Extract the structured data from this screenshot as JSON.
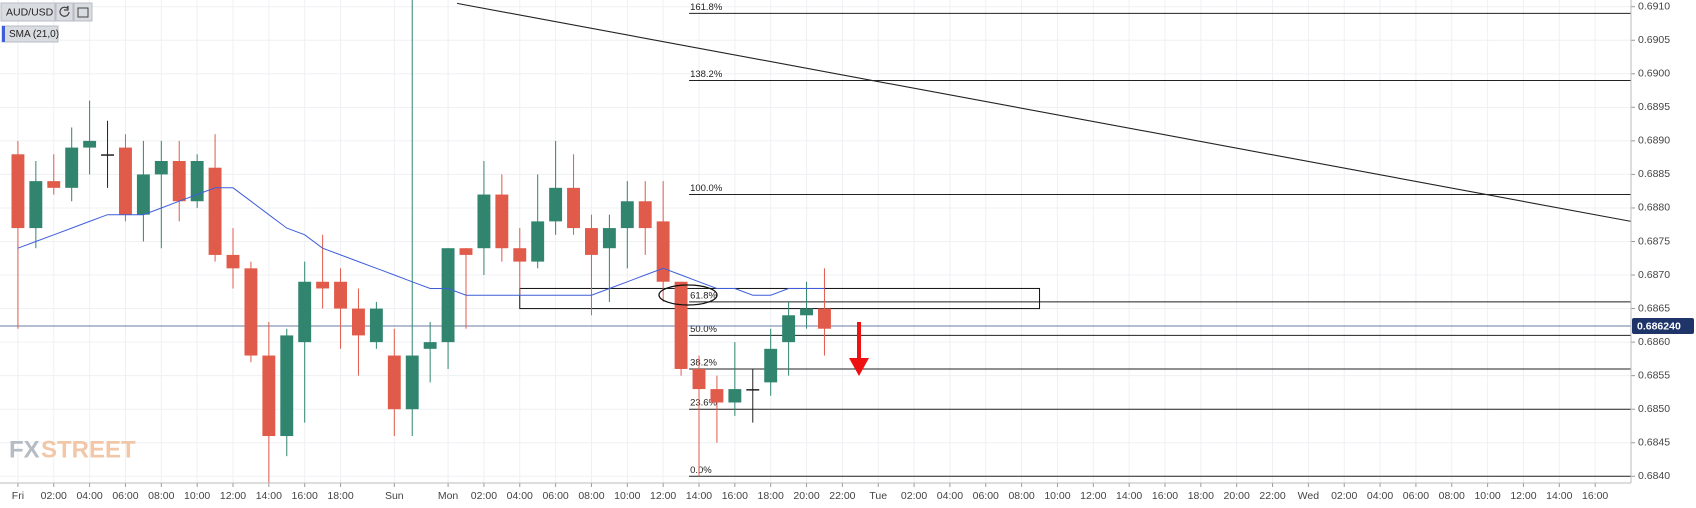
{
  "chart_data": {
    "type": "candlestick",
    "symbol": "AUD/USD",
    "watermark": {
      "first": "FX",
      "second": "STREET"
    },
    "colors": {
      "up": "#31856f",
      "down": "#e15b4b",
      "flat": "#222222"
    },
    "xlim": [
      -1,
      90
    ],
    "ylim": [
      0.6839,
      0.6911
    ],
    "grid": true,
    "xticks": [
      {
        "value": 0,
        "label": "Fri"
      },
      {
        "value": 2,
        "label": "02:00"
      },
      {
        "value": 4,
        "label": "04:00"
      },
      {
        "value": 6,
        "label": "06:00"
      },
      {
        "value": 8,
        "label": "08:00"
      },
      {
        "value": 10,
        "label": "10:00"
      },
      {
        "value": 12,
        "label": "12:00"
      },
      {
        "value": 14,
        "label": "14:00"
      },
      {
        "value": 16,
        "label": "16:00"
      },
      {
        "value": 18,
        "label": "18:00"
      },
      {
        "value": 21,
        "label": "Sun"
      },
      {
        "value": 24,
        "label": "Mon"
      },
      {
        "value": 26,
        "label": "02:00"
      },
      {
        "value": 28,
        "label": "04:00"
      },
      {
        "value": 30,
        "label": "06:00"
      },
      {
        "value": 32,
        "label": "08:00"
      },
      {
        "value": 34,
        "label": "10:00"
      },
      {
        "value": 36,
        "label": "12:00"
      },
      {
        "value": 38,
        "label": "14:00"
      },
      {
        "value": 40,
        "label": "16:00"
      },
      {
        "value": 42,
        "label": "18:00"
      },
      {
        "value": 44,
        "label": "20:00"
      },
      {
        "value": 46,
        "label": "22:00"
      },
      {
        "value": 48,
        "label": "Tue"
      },
      {
        "value": 50,
        "label": "02:00"
      },
      {
        "value": 52,
        "label": "04:00"
      },
      {
        "value": 54,
        "label": "06:00"
      },
      {
        "value": 56,
        "label": "08:00"
      },
      {
        "value": 58,
        "label": "10:00"
      },
      {
        "value": 60,
        "label": "12:00"
      },
      {
        "value": 62,
        "label": "14:00"
      },
      {
        "value": 64,
        "label": "16:00"
      },
      {
        "value": 66,
        "label": "18:00"
      },
      {
        "value": 68,
        "label": "20:00"
      },
      {
        "value": 70,
        "label": "22:00"
      },
      {
        "value": 72,
        "label": "Wed"
      },
      {
        "value": 74,
        "label": "02:00"
      },
      {
        "value": 76,
        "label": "04:00"
      },
      {
        "value": 78,
        "label": "06:00"
      },
      {
        "value": 80,
        "label": "08:00"
      },
      {
        "value": 82,
        "label": "10:00"
      },
      {
        "value": 84,
        "label": "12:00"
      },
      {
        "value": 86,
        "label": "14:00"
      },
      {
        "value": 88,
        "label": "16:00"
      }
    ],
    "yticks": [
      {
        "value": 0.684,
        "label": "0.6840"
      },
      {
        "value": 0.6845,
        "label": "0.6845"
      },
      {
        "value": 0.685,
        "label": "0.6850"
      },
      {
        "value": 0.6855,
        "label": "0.6855"
      },
      {
        "value": 0.686,
        "label": "0.6860"
      },
      {
        "value": 0.6865,
        "label": "0.6865"
      },
      {
        "value": 0.687,
        "label": "0.6870"
      },
      {
        "value": 0.6875,
        "label": "0.6875"
      },
      {
        "value": 0.688,
        "label": "0.6880"
      },
      {
        "value": 0.6885,
        "label": "0.6885"
      },
      {
        "value": 0.689,
        "label": "0.6890"
      },
      {
        "value": 0.6895,
        "label": "0.6895"
      },
      {
        "value": 0.69,
        "label": "0.6900"
      },
      {
        "value": 0.6905,
        "label": "0.6905"
      },
      {
        "value": 0.691,
        "label": "0.6910"
      }
    ],
    "x": [
      0,
      1,
      2,
      3,
      4,
      5,
      6,
      7,
      8,
      9,
      10,
      11,
      12,
      13,
      14,
      15,
      16,
      17,
      18,
      19,
      20,
      21,
      22,
      23,
      24,
      25,
      26,
      27,
      28,
      29,
      30,
      31,
      32,
      33,
      34,
      35,
      36,
      37,
      38,
      39,
      40,
      41,
      42,
      43,
      44,
      45
    ],
    "open": [
      0.6888,
      0.6877,
      0.6884,
      0.6883,
      0.6889,
      0.6888,
      0.6889,
      0.6879,
      0.6885,
      0.6887,
      0.6881,
      0.6886,
      0.6873,
      0.6871,
      0.6858,
      0.6846,
      0.686,
      0.6869,
      0.6869,
      0.6865,
      0.686,
      0.6858,
      0.685,
      0.6859,
      0.686,
      0.6874,
      0.6874,
      0.6882,
      0.6874,
      0.6872,
      0.6878,
      0.6883,
      0.6877,
      0.6874,
      0.6877,
      0.6881,
      0.6878,
      0.6869,
      0.6856,
      0.6853,
      0.6851,
      0.6853,
      0.6854,
      0.686,
      0.6864,
      0.6865
    ],
    "high": [
      0.689,
      0.6887,
      0.6888,
      0.6892,
      0.6896,
      0.6893,
      0.6891,
      0.689,
      0.689,
      0.689,
      0.6888,
      0.6891,
      0.6877,
      0.6872,
      0.6863,
      0.6862,
      0.6872,
      0.6876,
      0.6871,
      0.6868,
      0.6866,
      0.6862,
      0.6911,
      0.6863,
      0.6874,
      0.6874,
      0.6887,
      0.6885,
      0.6877,
      0.6885,
      0.689,
      0.6888,
      0.6879,
      0.6879,
      0.6884,
      0.6884,
      0.6884,
      0.6869,
      0.6858,
      0.6855,
      0.686,
      0.6856,
      0.6862,
      0.6866,
      0.6869,
      0.6871
    ],
    "low": [
      0.6862,
      0.6874,
      0.6882,
      0.6881,
      0.6885,
      0.6883,
      0.6878,
      0.6875,
      0.6874,
      0.6878,
      0.688,
      0.6872,
      0.6868,
      0.6857,
      0.6839,
      0.6843,
      0.6848,
      0.6865,
      0.6859,
      0.6855,
      0.6859,
      0.6846,
      0.6846,
      0.6854,
      0.6856,
      0.6862,
      0.687,
      0.6872,
      0.6867,
      0.6871,
      0.6876,
      0.6876,
      0.6864,
      0.6866,
      0.6871,
      0.6873,
      0.6866,
      0.6855,
      0.684,
      0.6845,
      0.6849,
      0.6848,
      0.6852,
      0.6855,
      0.6862,
      0.6858
    ],
    "close": [
      0.6877,
      0.6884,
      0.6883,
      0.6889,
      0.689,
      0.6888,
      0.6879,
      0.6885,
      0.6887,
      0.6881,
      0.6887,
      0.6873,
      0.6871,
      0.6858,
      0.6846,
      0.6861,
      0.6869,
      0.6868,
      0.6865,
      0.6861,
      0.6865,
      0.685,
      0.6858,
      0.686,
      0.6874,
      0.6873,
      0.6882,
      0.6874,
      0.6872,
      0.6878,
      0.6883,
      0.6877,
      0.6873,
      0.6877,
      0.6881,
      0.6877,
      0.6869,
      0.6856,
      0.6853,
      0.6851,
      0.6853,
      0.6853,
      0.6859,
      0.6864,
      0.6865,
      0.6862
    ],
    "sma": {
      "name": "SMA (21,0)",
      "color": "#3f5fd9",
      "values": [
        0.6874,
        0.6875,
        0.6876,
        0.6877,
        0.6878,
        0.6879,
        0.6879,
        0.6879,
        0.688,
        0.6881,
        0.6882,
        0.6883,
        0.6883,
        0.6881,
        0.6879,
        0.6877,
        0.6876,
        0.6874,
        0.6873,
        0.6872,
        0.6871,
        0.687,
        0.6869,
        0.6868,
        0.6868,
        0.6867,
        0.6867,
        0.6867,
        0.6867,
        0.6867,
        0.6867,
        0.6867,
        0.6867,
        0.6868,
        0.6869,
        0.687,
        0.6871,
        0.687,
        0.6869,
        0.6868,
        0.6868,
        0.6867,
        0.6867,
        0.6868,
        0.6868,
        0.6868
      ]
    },
    "current_price": {
      "value": 0.68624,
      "label": "0.686240"
    },
    "trendline": {
      "x": [
        24.5,
        90
      ],
      "y": [
        0.69105,
        0.6878
      ]
    },
    "zone": {
      "x": [
        28,
        57
      ],
      "y": [
        0.6865,
        0.6868
      ]
    },
    "fib": {
      "x_start": 37,
      "levels": [
        {
          "label": "161.8%",
          "value": 0.6909
        },
        {
          "label": "138.2%",
          "value": 0.6899
        },
        {
          "label": "100.0%",
          "value": 0.6882
        },
        {
          "label": "61.8%",
          "value": 0.6866
        },
        {
          "label": "50.0%",
          "value": 0.6861
        },
        {
          "label": "38.2%",
          "value": 0.6856
        },
        {
          "label": "23.6%",
          "value": 0.685
        },
        {
          "label": "0.0%",
          "value": 0.684
        }
      ]
    }
  }
}
